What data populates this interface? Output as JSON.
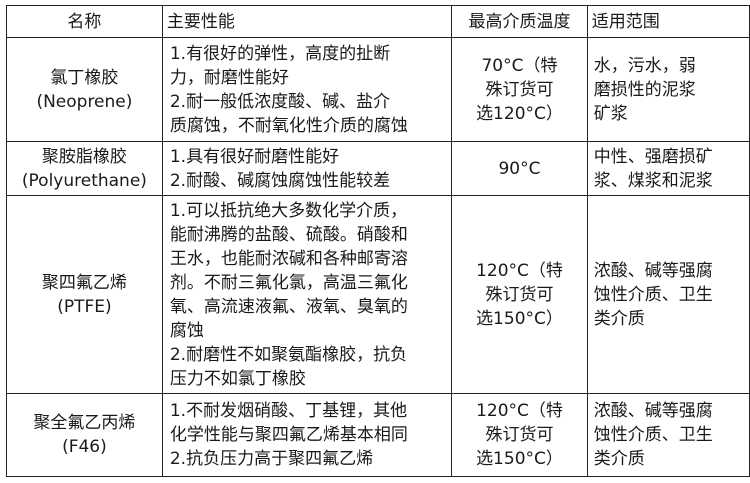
{
  "headers": [
    "名称",
    "主要性能",
    "最高介质温度",
    "适用范围"
  ],
  "rows": [
    {
      "name": "氯丁橡胶\n(Neoprene)",
      "performance": "1.有很好的弹性，高度的扯断\n力，耐磨性能好\n2.耐一般低浓度酸、碱、盐介\n质腐蚀，不耐氧化性介质的腐蚀",
      "max_temp": "70°C（特\n殊订货可\n选120°C）",
      "scope": "水，污水，弱\n磨损性的泥浆\n矿浆"
    },
    {
      "name": "聚胺脂橡胶\n(Polyurethane)",
      "performance": "1.具有很好耐磨性能好\n2.耐酸、碱腐蚀腐蚀性能较差",
      "max_temp": "90°C",
      "scope": "中性、强磨损矿\n浆、煤浆和泥浆"
    },
    {
      "name": "聚四氟乙烯\n(PTFE)",
      "performance": "1.可以抵抗绝大多数化学介质，\n能耐沸腾的盐酸、硫酸。硝酸和\n王水，也能耐浓碱和各种邮寄溶\n剂。不耐三氟化氯，高温三氟化\n氧、高流速液氟、液氧、臭氧的\n腐蚀\n2.耐磨性不如聚氨酯橡胶，抗负\n压力不如氯丁橡胶",
      "max_temp": "120°C（特\n殊订货可\n选150°C）",
      "scope": "浓酸、碱等强腐\n蚀性介质、卫生\n类介质"
    },
    {
      "name": "聚全氟乙丙烯\n(F46)",
      "performance": "1.不耐发烟硝酸、丁基锂，其他\n化学性能与聚四氟乙烯基本相同\n2.抗负压力高于聚四氟乙烯",
      "max_temp": "120°C（特\n殊订货可\n选150°C）",
      "scope": "浓酸、碱等强腐\n蚀性介质、卫生\n类介质"
    }
  ]
}
